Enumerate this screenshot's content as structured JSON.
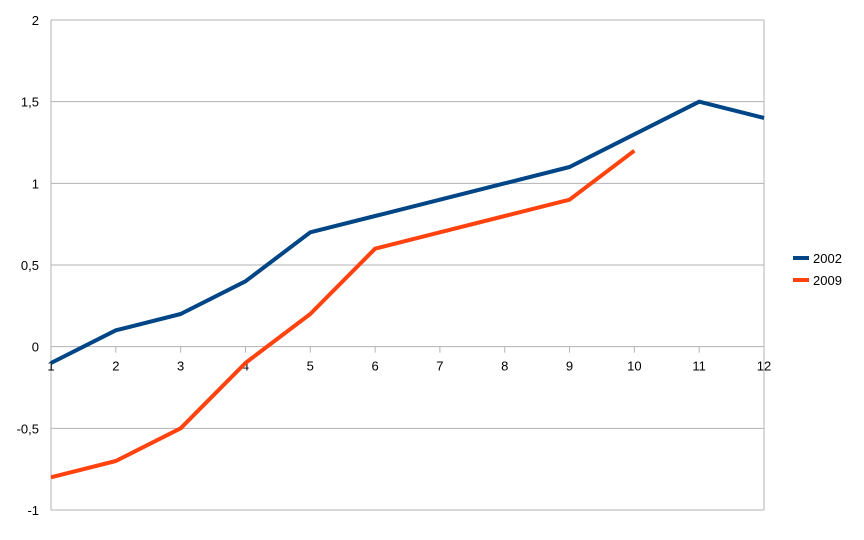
{
  "chart_data": {
    "type": "line",
    "title": "",
    "xlabel": "",
    "ylabel": "",
    "x": [
      1,
      2,
      3,
      4,
      5,
      6,
      7,
      8,
      9,
      10,
      11,
      12
    ],
    "ylim": [
      -1,
      2
    ],
    "yticks": [
      -1,
      -0.5,
      0,
      0.5,
      1,
      1.5,
      2
    ],
    "ytick_labels": [
      "-1",
      "-0,5",
      "0",
      "0,5",
      "1",
      "1,5",
      "2"
    ],
    "grid": true,
    "legend_position": "right",
    "series": [
      {
        "name": "2002",
        "color": "#004586",
        "values": [
          -0.1,
          0.1,
          0.2,
          0.4,
          0.7,
          0.8,
          0.9,
          1.0,
          1.1,
          1.3,
          1.5,
          1.4
        ]
      },
      {
        "name": "2009",
        "color": "#ff420e",
        "values": [
          -0.8,
          -0.7,
          -0.5,
          -0.1,
          0.2,
          0.6,
          0.7,
          0.8,
          0.9,
          1.2,
          null,
          null
        ]
      }
    ]
  }
}
